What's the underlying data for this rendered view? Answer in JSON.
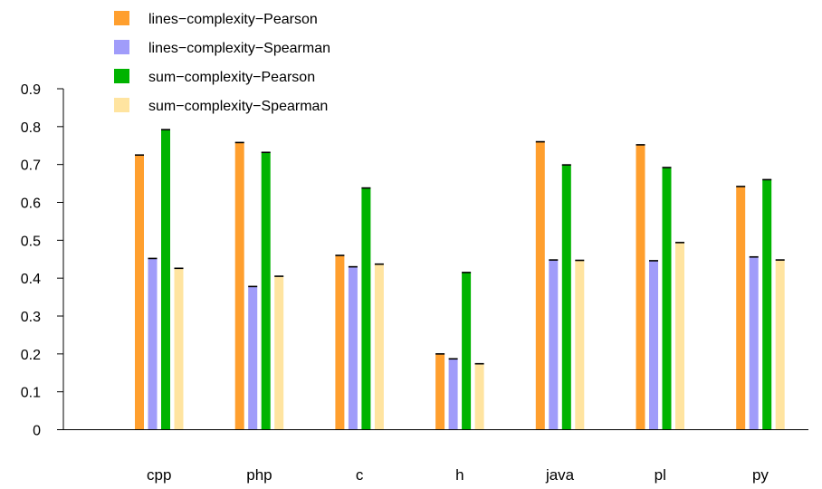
{
  "chart_data": {
    "type": "bar",
    "title": "",
    "xlabel": "",
    "ylabel": "",
    "ylim": [
      0,
      0.9
    ],
    "yticks": [
      "0",
      "0.1",
      "0.2",
      "0.3",
      "0.4",
      "0.5",
      "0.6",
      "0.7",
      "0.8",
      "0.9"
    ],
    "grid": false,
    "legend_position": "top-left",
    "categories": [
      "cpp",
      "php",
      "c",
      "h",
      "java",
      "pl",
      "py"
    ],
    "series": [
      {
        "name": "lines−complexity−Pearson",
        "color": "#FF9F2E",
        "values": [
          0.725,
          0.758,
          0.46,
          0.2,
          0.76,
          0.752,
          0.642
        ]
      },
      {
        "name": "lines−complexity−Spearman",
        "color": "#A09CFA",
        "values": [
          0.452,
          0.378,
          0.43,
          0.187,
          0.448,
          0.446,
          0.456
        ]
      },
      {
        "name": "sum−complexity−Pearson",
        "color": "#00B300",
        "values": [
          0.792,
          0.732,
          0.638,
          0.415,
          0.699,
          0.692,
          0.66
        ]
      },
      {
        "name": "sum−complexity−Spearman",
        "color": "#FFE4A0",
        "values": [
          0.426,
          0.405,
          0.437,
          0.174,
          0.447,
          0.494,
          0.448
        ]
      }
    ]
  }
}
